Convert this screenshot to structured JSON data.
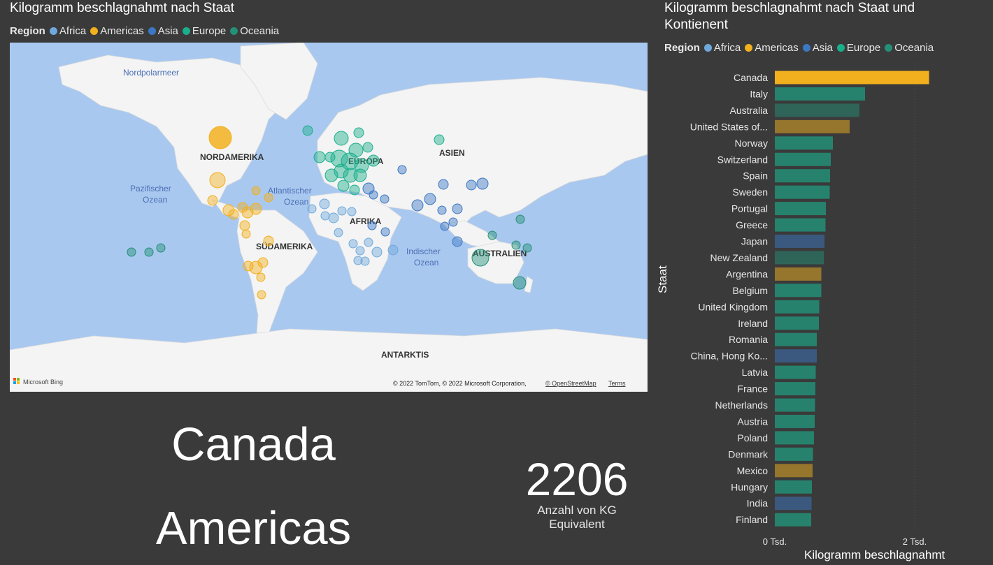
{
  "map_title": "Kilogramm beschlagnahmt nach Staat",
  "bar_title_line1": "Kilogramm beschlagnahmt nach Staat und",
  "bar_title_line2": "Kontienent",
  "legend": {
    "title": "Region",
    "items": [
      {
        "label": "Africa",
        "color": "#6fa8dc"
      },
      {
        "label": "Americas",
        "color": "#f2b01e"
      },
      {
        "label": "Asia",
        "color": "#3b78c4"
      },
      {
        "label": "Europe",
        "color": "#1aaf8c"
      },
      {
        "label": "Oceania",
        "color": "#239077"
      }
    ]
  },
  "map": {
    "labels": {
      "nordpolarmeer": "Nordpolarmeer",
      "nordamerika": "NORDAMERIKA",
      "europa": "EUROPA",
      "asien": "ASIEN",
      "pazifischer1": "Pazifischer",
      "pazifischer2": "Ozean",
      "atlantischer1": "Atlantischer",
      "atlantischer2": "Ozean",
      "afrika": "AFRIKA",
      "suedamerika": "SÜDAMERIKA",
      "indischer1": "Indischer",
      "indischer2": "Ozean",
      "australien": "AUSTRALIEN",
      "antarktis": "ANTARKTIS"
    },
    "bing": "Microsoft Bing",
    "attribution": "© 2022 TomTom, © 2022 Microsoft Corporation,",
    "osm_link": "© OpenStreetMap",
    "terms_link": "Terms"
  },
  "selected_country": "Canada",
  "selected_region": "Americas",
  "kpi": {
    "value": "2206",
    "label_line1": "Anzahl von KG",
    "label_line2": "Equivalent"
  },
  "chart_data": {
    "type": "bar",
    "orientation": "horizontal",
    "title": "Kilogramm beschlagnahmt nach Staat und Kontienent",
    "xlabel": "Kilogramm beschlagnahmt",
    "ylabel": "Staat",
    "xlim": [
      0,
      2400
    ],
    "x_ticks": [
      "0 Tsd.",
      "2 Tsd."
    ],
    "categories": [
      "Canada",
      "Italy",
      "Australia",
      "United States of...",
      "Norway",
      "Switzerland",
      "Spain",
      "Sweden",
      "Portugal",
      "Greece",
      "Japan",
      "New Zealand",
      "Argentina",
      "Belgium",
      "United Kingdom",
      "Ireland",
      "Romania",
      "China, Hong Ko...",
      "Latvia",
      "France",
      "Netherlands",
      "Austria",
      "Poland",
      "Denmark",
      "Mexico",
      "Hungary",
      "India",
      "Finland"
    ],
    "regions": [
      "Americas",
      "Europe",
      "Oceania",
      "Americas",
      "Europe",
      "Europe",
      "Europe",
      "Europe",
      "Europe",
      "Europe",
      "Asia",
      "Oceania",
      "Americas",
      "Europe",
      "Europe",
      "Europe",
      "Europe",
      "Asia",
      "Europe",
      "Europe",
      "Europe",
      "Europe",
      "Europe",
      "Europe",
      "Americas",
      "Europe",
      "Asia",
      "Europe"
    ],
    "values": [
      2206,
      1290,
      1210,
      1070,
      830,
      800,
      790,
      785,
      730,
      725,
      710,
      700,
      665,
      665,
      635,
      630,
      600,
      600,
      585,
      580,
      575,
      570,
      560,
      545,
      540,
      530,
      525,
      520
    ],
    "region_colors": {
      "Americas": "#f2b01e",
      "Europe": "#1aaf8c",
      "Oceania": "#239077",
      "Asia": "#3b78c4",
      "Africa": "#6fa8dc"
    }
  }
}
